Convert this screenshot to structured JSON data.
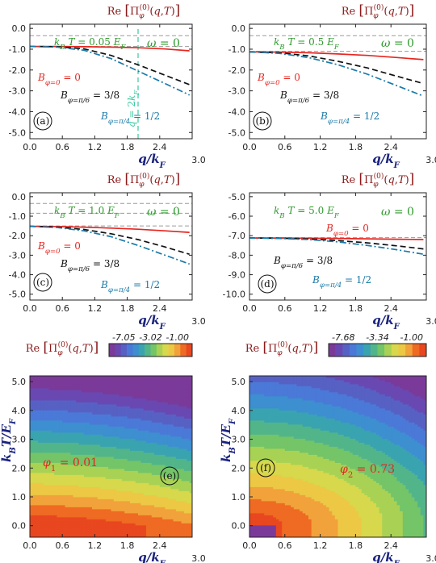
{
  "colors": {
    "red": "#e8251f",
    "black": "#111111",
    "blue": "#1a7aa8",
    "green": "#2e9a2e",
    "gray": "#9a9a9a",
    "teal": "#3ac8a0",
    "darkred": "#8b1a1a",
    "navy": "#1a237e"
  },
  "chart_data": [
    {
      "type": "line",
      "panel": "a",
      "ylabel": "Re [Π_φ^(0)(q,T)]",
      "xlabel": "q/k_F",
      "xlim": [
        0,
        3.0
      ],
      "ylim": [
        -5.3,
        0.2
      ],
      "xticks": [
        "0.0",
        "0.6",
        "1.2",
        "1.8",
        "2.4",
        "3.0"
      ],
      "yticks": [
        "0.0",
        "-1.0",
        "-2.0",
        "-3.0",
        "-4.0",
        "-5.0"
      ],
      "temp_label": "k_B T = 0.05 E_F",
      "omega_label": "ω = 0",
      "vline_label": "q = 2k_F",
      "vline_x": 2.0,
      "gray_levels": [
        -0.35,
        -0.87
      ],
      "series": [
        {
          "name": "B_{φ=0} = 0",
          "color": "red",
          "dash": "solid",
          "x": [
            0,
            0.5,
            1.0,
            1.5,
            2.0,
            2.5,
            2.95
          ],
          "y": [
            -0.87,
            -0.87,
            -0.88,
            -0.9,
            -0.93,
            -0.99,
            -1.08
          ]
        },
        {
          "name": "B_{φ=π/6} = 3/8",
          "color": "black",
          "dash": "dash",
          "x": [
            0,
            0.5,
            1.0,
            1.5,
            2.0,
            2.5,
            2.95
          ],
          "y": [
            -0.87,
            -0.88,
            -0.98,
            -1.3,
            -1.75,
            -2.25,
            -2.7
          ]
        },
        {
          "name": "B_{φ=π/4} = 1/2",
          "color": "blue",
          "dash": "dashdot",
          "x": [
            0,
            0.5,
            1.0,
            1.5,
            2.0,
            2.5,
            2.95
          ],
          "y": [
            -0.87,
            -0.9,
            -1.05,
            -1.45,
            -2.05,
            -2.65,
            -3.2
          ]
        }
      ],
      "panel_label": "(a)"
    },
    {
      "type": "line",
      "panel": "b",
      "ylabel": "Re [Π_φ^(0)(q,T)]",
      "xlabel": "q/k_F",
      "xlim": [
        0,
        3.0
      ],
      "ylim": [
        -5.3,
        0.2
      ],
      "xticks": [
        "0.0",
        "0.6",
        "1.2",
        "1.8",
        "2.4",
        "3.0"
      ],
      "yticks": [
        "0.0",
        "-1.0",
        "-2.0",
        "-3.0",
        "-4.0",
        "-5.0"
      ],
      "temp_label": "k_B T = 0.5 E_F",
      "omega_label": "ω = 0",
      "gray_levels": [
        -0.35,
        -1.1
      ],
      "series": [
        {
          "name": "B_{φ=0} = 0",
          "color": "red",
          "dash": "solid",
          "x": [
            0,
            0.5,
            1.0,
            1.5,
            2.0,
            2.5,
            2.95
          ],
          "y": [
            -1.13,
            -1.14,
            -1.17,
            -1.23,
            -1.3,
            -1.4,
            -1.5
          ]
        },
        {
          "name": "B_{φ=π/6} = 3/8",
          "color": "black",
          "dash": "dash",
          "x": [
            0,
            0.5,
            1.0,
            1.5,
            2.0,
            2.5,
            2.95
          ],
          "y": [
            -1.13,
            -1.17,
            -1.32,
            -1.58,
            -1.9,
            -2.3,
            -2.65
          ]
        },
        {
          "name": "B_{φ=π/4} = 1/2",
          "color": "blue",
          "dash": "dashdot",
          "x": [
            0,
            0.5,
            1.0,
            1.5,
            2.0,
            2.5,
            2.95
          ],
          "y": [
            -1.13,
            -1.2,
            -1.4,
            -1.75,
            -2.2,
            -2.75,
            -3.25
          ]
        }
      ],
      "panel_label": "(b)"
    },
    {
      "type": "line",
      "panel": "c",
      "ylabel": "Re [Π_φ^(0)(q,T)]",
      "xlabel": "q/k_F",
      "xlim": [
        0,
        3.0
      ],
      "ylim": [
        -5.3,
        0.2
      ],
      "xticks": [
        "0.0",
        "0.6",
        "1.2",
        "1.8",
        "2.4",
        "3.0"
      ],
      "yticks": [
        "0.0",
        "-1.0",
        "-2.0",
        "-3.0",
        "-4.0",
        "-5.0"
      ],
      "temp_label": "k_B T = 1.0 E_F",
      "omega_label": "ω = 0",
      "gray_levels": [
        -0.35,
        -0.85,
        -1.5
      ],
      "series": [
        {
          "name": "B_{φ=0} = 0",
          "color": "red",
          "dash": "solid",
          "x": [
            0,
            0.5,
            1.0,
            1.5,
            2.0,
            2.5,
            2.95
          ],
          "y": [
            -1.52,
            -1.53,
            -1.56,
            -1.61,
            -1.67,
            -1.75,
            -1.83
          ]
        },
        {
          "name": "B_{φ=π/6} = 3/8",
          "color": "black",
          "dash": "dash",
          "x": [
            0,
            0.5,
            1.0,
            1.5,
            2.0,
            2.5,
            2.95
          ],
          "y": [
            -1.52,
            -1.56,
            -1.68,
            -1.9,
            -2.2,
            -2.58,
            -2.95
          ]
        },
        {
          "name": "B_{φ=π/4} = 1/2",
          "color": "blue",
          "dash": "dashdot",
          "x": [
            0,
            0.5,
            1.0,
            1.5,
            2.0,
            2.5,
            2.95
          ],
          "y": [
            -1.52,
            -1.58,
            -1.75,
            -2.05,
            -2.5,
            -3.0,
            -3.45
          ]
        }
      ],
      "panel_label": "(c)"
    },
    {
      "type": "line",
      "panel": "d",
      "ylabel": "Re [Π_φ^(0)(q,T)]",
      "xlabel": "q/k_F",
      "xlim": [
        0,
        3.0
      ],
      "ylim": [
        -10.3,
        -4.8
      ],
      "xticks": [
        "0.0",
        "0.6",
        "1.2",
        "1.8",
        "2.4",
        "3.0"
      ],
      "yticks": [
        "-5.0",
        "-6.0",
        "-7.0",
        "-8.0",
        "-9.0",
        "-10.0"
      ],
      "temp_label": "k_B T = 5.0 E_F",
      "omega_label": "ω = 0",
      "gray_levels": [
        -7.1
      ],
      "series": [
        {
          "name": "B_{φ=0} = 0",
          "color": "red",
          "dash": "solid",
          "x": [
            0,
            0.5,
            1.0,
            1.5,
            2.0,
            2.5,
            2.95
          ],
          "y": [
            -7.12,
            -7.12,
            -7.13,
            -7.14,
            -7.16,
            -7.18,
            -7.2
          ]
        },
        {
          "name": "B_{φ=π/6} = 3/8",
          "color": "black",
          "dash": "dash",
          "x": [
            0,
            0.5,
            1.0,
            1.5,
            2.0,
            2.5,
            2.95
          ],
          "y": [
            -7.12,
            -7.13,
            -7.17,
            -7.25,
            -7.37,
            -7.52,
            -7.68
          ]
        },
        {
          "name": "B_{φ=π/4} = 1/2",
          "color": "blue",
          "dash": "dashdot",
          "x": [
            0,
            0.5,
            1.0,
            1.5,
            2.0,
            2.5,
            2.95
          ],
          "y": [
            -7.12,
            -7.14,
            -7.2,
            -7.32,
            -7.5,
            -7.72,
            -7.95
          ]
        }
      ],
      "panel_label": "(d)"
    },
    {
      "type": "heatmap",
      "panel": "e",
      "ylabel": "k_B T / E_F",
      "xlabel": "q/k_F",
      "colorbar_label": "Re [Π_φ^(0)(q,T)]",
      "colorbar_ticks": [
        "-7.05",
        "-3.02",
        "-1.00"
      ],
      "xticks": [
        "0.0",
        "0.6",
        "1.2",
        "1.8",
        "2.4",
        "3.0"
      ],
      "yticks": [
        "5.0",
        "4.0",
        "3.0",
        "2.0",
        "1.0",
        "0.0"
      ],
      "xlim": [
        0,
        3.0
      ],
      "ylim": [
        -0.4,
        5.2
      ],
      "phi_label": "φ_1 = 0.01",
      "panel_label": "(e)"
    },
    {
      "type": "heatmap",
      "panel": "f",
      "ylabel": "k_B T / E_F",
      "xlabel": "q/k_F",
      "colorbar_label": "Re [Π_φ^(0)(q,T)]",
      "colorbar_ticks": [
        "-7.68",
        "-3.34",
        "-1.00"
      ],
      "xticks": [
        "0.0",
        "0.6",
        "1.2",
        "1.8",
        "2.4",
        "3.0"
      ],
      "yticks": [
        "5.0",
        "4.0",
        "3.0",
        "2.0",
        "1.0",
        "0.0"
      ],
      "xlim": [
        0,
        3.0
      ],
      "ylim": [
        -0.4,
        5.2
      ],
      "phi_label": "φ_2 = 0.73",
      "panel_label": "(f)"
    }
  ]
}
